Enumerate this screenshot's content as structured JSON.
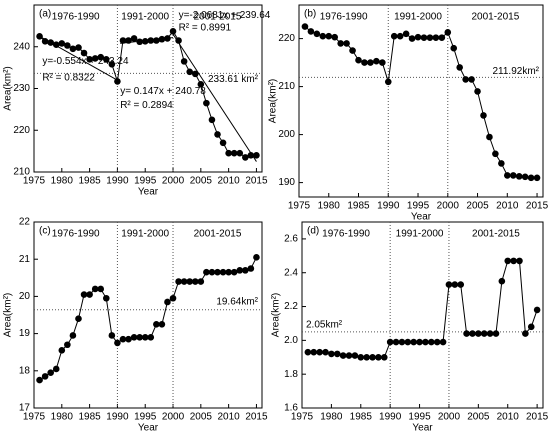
{
  "chart_data": [
    {
      "type": "line",
      "panel_label": "(a)",
      "x_label": "Year",
      "y_label": "Area(km²)",
      "xlim": [
        1975,
        2016
      ],
      "xticks": [
        1975,
        1980,
        1985,
        1990,
        1995,
        2000,
        2005,
        2010,
        2015
      ],
      "ylim": [
        210,
        250
      ],
      "yticks": [
        210,
        220,
        230,
        240
      ],
      "color": "#000000",
      "x": [
        1976,
        1977,
        1978,
        1979,
        1980,
        1981,
        1982,
        1983,
        1984,
        1985,
        1986,
        1987,
        1988,
        1989,
        1990,
        1991,
        1992,
        1993,
        1994,
        1995,
        1996,
        1997,
        1998,
        1999,
        2000,
        2001,
        2002,
        2003,
        2004,
        2005,
        2006,
        2007,
        2008,
        2009,
        2010,
        2011,
        2012,
        2013,
        2014,
        2015
      ],
      "values": [
        242.5,
        241.3,
        241,
        240.5,
        240.8,
        240.3,
        239.5,
        239.8,
        238.5,
        237,
        237.2,
        237.5,
        237,
        235.8,
        231.7,
        241.5,
        241.5,
        242,
        241.2,
        241.3,
        241.5,
        241.5,
        241.8,
        242,
        243.7,
        241.5,
        236.5,
        234,
        233.5,
        231,
        226.5,
        222.5,
        219,
        217,
        214.5,
        214.5,
        214.5,
        213.5,
        214,
        214
      ],
      "dividers": [
        1990,
        2000
      ],
      "period_labels": [
        "1976-1990",
        "1991-2000",
        "2001-2015"
      ],
      "reference": {
        "value": 233.61,
        "label": "233.61 km²"
      },
      "trend_lines": [
        {
          "x": [
            1976,
            1990
          ],
          "values": [
            242.5,
            232
          ]
        },
        {
          "x": [
            1990.5,
            2000
          ],
          "values": [
            240.8,
            242.2
          ]
        },
        {
          "x": [
            2000,
            2015
          ],
          "values": [
            243,
            212.5
          ]
        }
      ],
      "annotations": [
        "y=-0.554x + 243.24",
        "R² = 0.8322",
        "y= 0.147x + 240.78",
        "R² = 0.2894",
        "y=-2.0681x + 239.64",
        "R² = 0.8991"
      ]
    },
    {
      "type": "line",
      "panel_label": "(b)",
      "x_label": "Year",
      "y_label": "Area(km²)",
      "xlim": [
        1975,
        2016
      ],
      "xticks": [
        1975,
        1980,
        1985,
        1990,
        1995,
        2000,
        2005,
        2010,
        2015
      ],
      "ylim": [
        187,
        227
      ],
      "yticks": [
        190,
        200,
        210,
        220
      ],
      "color": "#000000",
      "x": [
        1976,
        1977,
        1978,
        1979,
        1980,
        1981,
        1982,
        1983,
        1984,
        1985,
        1986,
        1987,
        1988,
        1989,
        1990,
        1991,
        1992,
        1993,
        1994,
        1995,
        1996,
        1997,
        1998,
        1999,
        2000,
        2001,
        2002,
        2003,
        2004,
        2005,
        2006,
        2007,
        2008,
        2009,
        2010,
        2011,
        2012,
        2013,
        2014,
        2015
      ],
      "values": [
        222.5,
        221.5,
        221,
        220.5,
        220.5,
        220.3,
        219,
        219,
        217.5,
        215.5,
        215,
        215,
        215.3,
        215,
        211,
        220.5,
        220.5,
        221,
        220,
        220.3,
        220.2,
        220.2,
        220.2,
        220.2,
        221.3,
        218,
        214,
        211.5,
        211.5,
        209,
        204,
        199.5,
        196,
        194,
        191.5,
        191.5,
        191.3,
        191.2,
        191,
        191
      ],
      "dividers": [
        1990,
        2000
      ],
      "period_labels": [
        "1976-1990",
        "1991-2000",
        "2001-2015"
      ],
      "reference": {
        "value": 211.92,
        "label": "211.92km²"
      }
    },
    {
      "type": "line",
      "panel_label": "(c)",
      "x_label": "Year",
      "y_label": "Area(km²)",
      "xlim": [
        1975,
        2016
      ],
      "xticks": [
        1975,
        1980,
        1985,
        1990,
        1995,
        2000,
        2005,
        2010,
        2015
      ],
      "ylim": [
        17,
        22
      ],
      "yticks": [
        17,
        18,
        19,
        20,
        21,
        22
      ],
      "color": "#000000",
      "x": [
        1976,
        1977,
        1978,
        1979,
        1980,
        1981,
        1982,
        1983,
        1984,
        1985,
        1986,
        1987,
        1988,
        1989,
        1990,
        1991,
        1992,
        1993,
        1994,
        1995,
        1996,
        1997,
        1998,
        1999,
        2000,
        2001,
        2002,
        2003,
        2004,
        2005,
        2006,
        2007,
        2008,
        2009,
        2010,
        2011,
        2012,
        2013,
        2014,
        2015
      ],
      "values": [
        17.75,
        17.85,
        17.95,
        18.05,
        18.55,
        18.7,
        18.95,
        19.4,
        20.05,
        20.05,
        20.2,
        20.2,
        19.95,
        18.95,
        18.75,
        18.85,
        18.85,
        18.9,
        18.9,
        18.9,
        18.9,
        19.25,
        19.25,
        19.85,
        19.95,
        20.4,
        20.4,
        20.4,
        20.4,
        20.4,
        20.65,
        20.65,
        20.65,
        20.65,
        20.65,
        20.65,
        20.7,
        20.7,
        20.75,
        21.05
      ],
      "dividers": [
        1990,
        2000
      ],
      "period_labels": [
        "1976-1990",
        "1991-2000",
        "2001-2015"
      ],
      "reference": {
        "value": 19.64,
        "label": "19.64km²"
      }
    },
    {
      "type": "line",
      "panel_label": "(d)",
      "x_label": "Year",
      "y_label": "Area(km²)",
      "xlim": [
        1975,
        2016
      ],
      "xticks": [
        1975,
        1980,
        1985,
        1990,
        1995,
        2000,
        2005,
        2010,
        2015
      ],
      "ylim": [
        1.6,
        2.7
      ],
      "yticks": [
        {
          "value": 1.6,
          "label": "1.6"
        },
        {
          "value": 1.8,
          "label": "1.8"
        },
        {
          "value": 2.0,
          "label": "2.0"
        },
        {
          "value": 2.2,
          "label": "2.2"
        },
        {
          "value": 2.4,
          "label": "2.4"
        },
        {
          "value": 2.6,
          "label": "2.6"
        }
      ],
      "color": "#000000",
      "x": [
        1976,
        1977,
        1978,
        1979,
        1980,
        1981,
        1982,
        1983,
        1984,
        1985,
        1986,
        1987,
        1988,
        1989,
        1990,
        1991,
        1992,
        1993,
        1994,
        1995,
        1996,
        1997,
        1998,
        1999,
        2000,
        2001,
        2002,
        2003,
        2004,
        2005,
        2006,
        2007,
        2008,
        2009,
        2010,
        2011,
        2012,
        2013,
        2014,
        2015
      ],
      "values": [
        1.93,
        1.93,
        1.93,
        1.93,
        1.92,
        1.92,
        1.91,
        1.91,
        1.91,
        1.9,
        1.9,
        1.9,
        1.9,
        1.9,
        1.99,
        1.99,
        1.99,
        1.99,
        1.99,
        1.99,
        1.99,
        1.99,
        1.99,
        1.99,
        2.33,
        2.33,
        2.33,
        2.04,
        2.04,
        2.04,
        2.04,
        2.04,
        2.04,
        2.35,
        2.47,
        2.47,
        2.47,
        2.04,
        2.08,
        2.18
      ],
      "dividers": [
        1990,
        2000
      ],
      "period_labels": [
        "1976-1990",
        "1991-2000",
        "2001-2015"
      ],
      "reference": {
        "value": 2.05,
        "label": "2.05km²"
      }
    }
  ]
}
